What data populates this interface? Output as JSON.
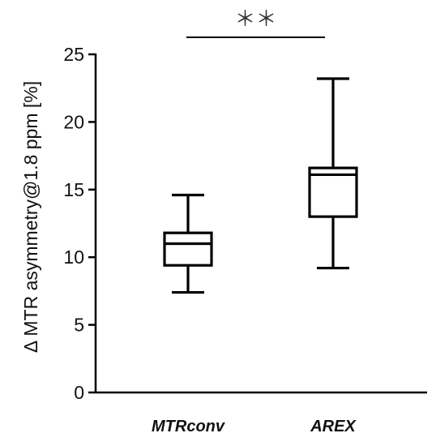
{
  "chart_data": {
    "type": "boxplot",
    "title": "",
    "xlabel": "",
    "ylabel": "Δ MTR asymmetry@1.8 ppm  [%]",
    "ylim": [
      0,
      25
    ],
    "yticks": [
      0,
      5,
      10,
      15,
      20,
      25
    ],
    "categories": [
      "MTRconv",
      "AREX"
    ],
    "boxes": [
      {
        "category": "MTRconv",
        "min": 7.4,
        "q1": 9.4,
        "median": 11.0,
        "q3": 11.8,
        "max": 14.6
      },
      {
        "category": "AREX",
        "min": 9.2,
        "q1": 13.0,
        "median": 16.1,
        "q3": 16.6,
        "max": 23.2
      }
    ],
    "annotation": {
      "text": "＊＊",
      "between": [
        "MTRconv",
        "AREX"
      ]
    },
    "grid": false,
    "colors": {
      "line": "#000000",
      "text": "#111111",
      "annotation": "#333333"
    }
  }
}
